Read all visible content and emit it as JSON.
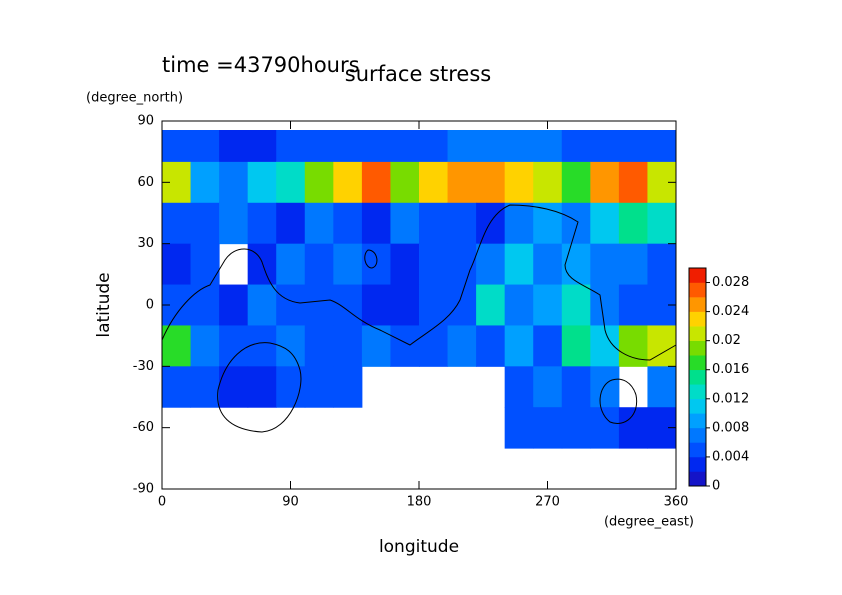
{
  "chart_data": {
    "type": "contour",
    "title": "surface stress",
    "subtitle": "time =43790hours",
    "x_label": "longitude",
    "y_label": "latitude",
    "x_unit": "(degree_east)",
    "y_unit": "(degree_north)",
    "xlim": [
      0,
      360
    ],
    "ylim": [
      -90,
      90
    ],
    "xticks": [
      0,
      90,
      180,
      270,
      360
    ],
    "yticks": [
      -90,
      -60,
      -30,
      0,
      30,
      60,
      90
    ],
    "x": [
      10,
      30,
      50,
      70,
      90,
      110,
      130,
      150,
      170,
      190,
      210,
      230,
      250,
      270,
      290,
      310,
      330,
      350
    ],
    "y": [
      80,
      60,
      40,
      20,
      0,
      -20,
      -40,
      -60,
      -80
    ],
    "z": [
      [
        0.004,
        0.004,
        0.003,
        0.003,
        0.004,
        0.004,
        0.004,
        0.005,
        0.005,
        0.005,
        0.006,
        0.006,
        0.006,
        0.006,
        0.005,
        0.005,
        0.004,
        0.004
      ],
      [
        0.02,
        0.008,
        0.006,
        0.01,
        0.012,
        0.018,
        0.022,
        0.026,
        0.018,
        0.022,
        0.024,
        0.024,
        0.022,
        0.02,
        0.016,
        0.024,
        0.026,
        0.02
      ],
      [
        0.004,
        0.005,
        0.006,
        0.004,
        0.002,
        0.006,
        0.004,
        0.002,
        0.006,
        0.005,
        0.004,
        0.003,
        0.006,
        0.008,
        0.006,
        0.01,
        0.014,
        0.012
      ],
      [
        0.003,
        0.004,
        0,
        0.002,
        0.006,
        0.005,
        0.006,
        0.004,
        0.003,
        0.004,
        0.005,
        0.006,
        0.01,
        0.006,
        0.008,
        0.006,
        0.006,
        0.004
      ],
      [
        0.004,
        0.004,
        0.003,
        0.006,
        0.004,
        0.004,
        0.005,
        0.003,
        0.002,
        0.004,
        0.004,
        0.012,
        0.006,
        0.008,
        0.012,
        0.006,
        0.004,
        0.005
      ],
      [
        0.016,
        0.006,
        0.004,
        0.004,
        0.006,
        0.004,
        0.004,
        0.006,
        0.005,
        0.004,
        0.006,
        0.004,
        0.008,
        0.004,
        0.014,
        0.01,
        0.018,
        0.02
      ],
      [
        0.004,
        0.004,
        0.002,
        0.003,
        0.004,
        0.004,
        0.004,
        0,
        0,
        0,
        0,
        0,
        0.004,
        0.006,
        0.004,
        0.006,
        0,
        0.006
      ],
      [
        0,
        0,
        0,
        0,
        0,
        0,
        0,
        0,
        0,
        0,
        0,
        0,
        0.004,
        0.004,
        0.004,
        0.004,
        0.003,
        0.002
      ],
      [
        0,
        0,
        0,
        0,
        0,
        0,
        0,
        0,
        0,
        0,
        0,
        0,
        0,
        0,
        0,
        0,
        0,
        0
      ]
    ],
    "zlim": [
      0,
      0.03
    ],
    "zticks": [
      0,
      0.004,
      0.008,
      0.012,
      0.016,
      0.02,
      0.024,
      0.028
    ],
    "colors": [
      "#1414c8",
      "#0028f0",
      "#0050ff",
      "#0078ff",
      "#00a0ff",
      "#00c8f0",
      "#00dcc8",
      "#00e08c",
      "#28dc28",
      "#78dc00",
      "#c8e600",
      "#ffd200",
      "#ff9600",
      "#ff5a00",
      "#f01e00"
    ]
  }
}
